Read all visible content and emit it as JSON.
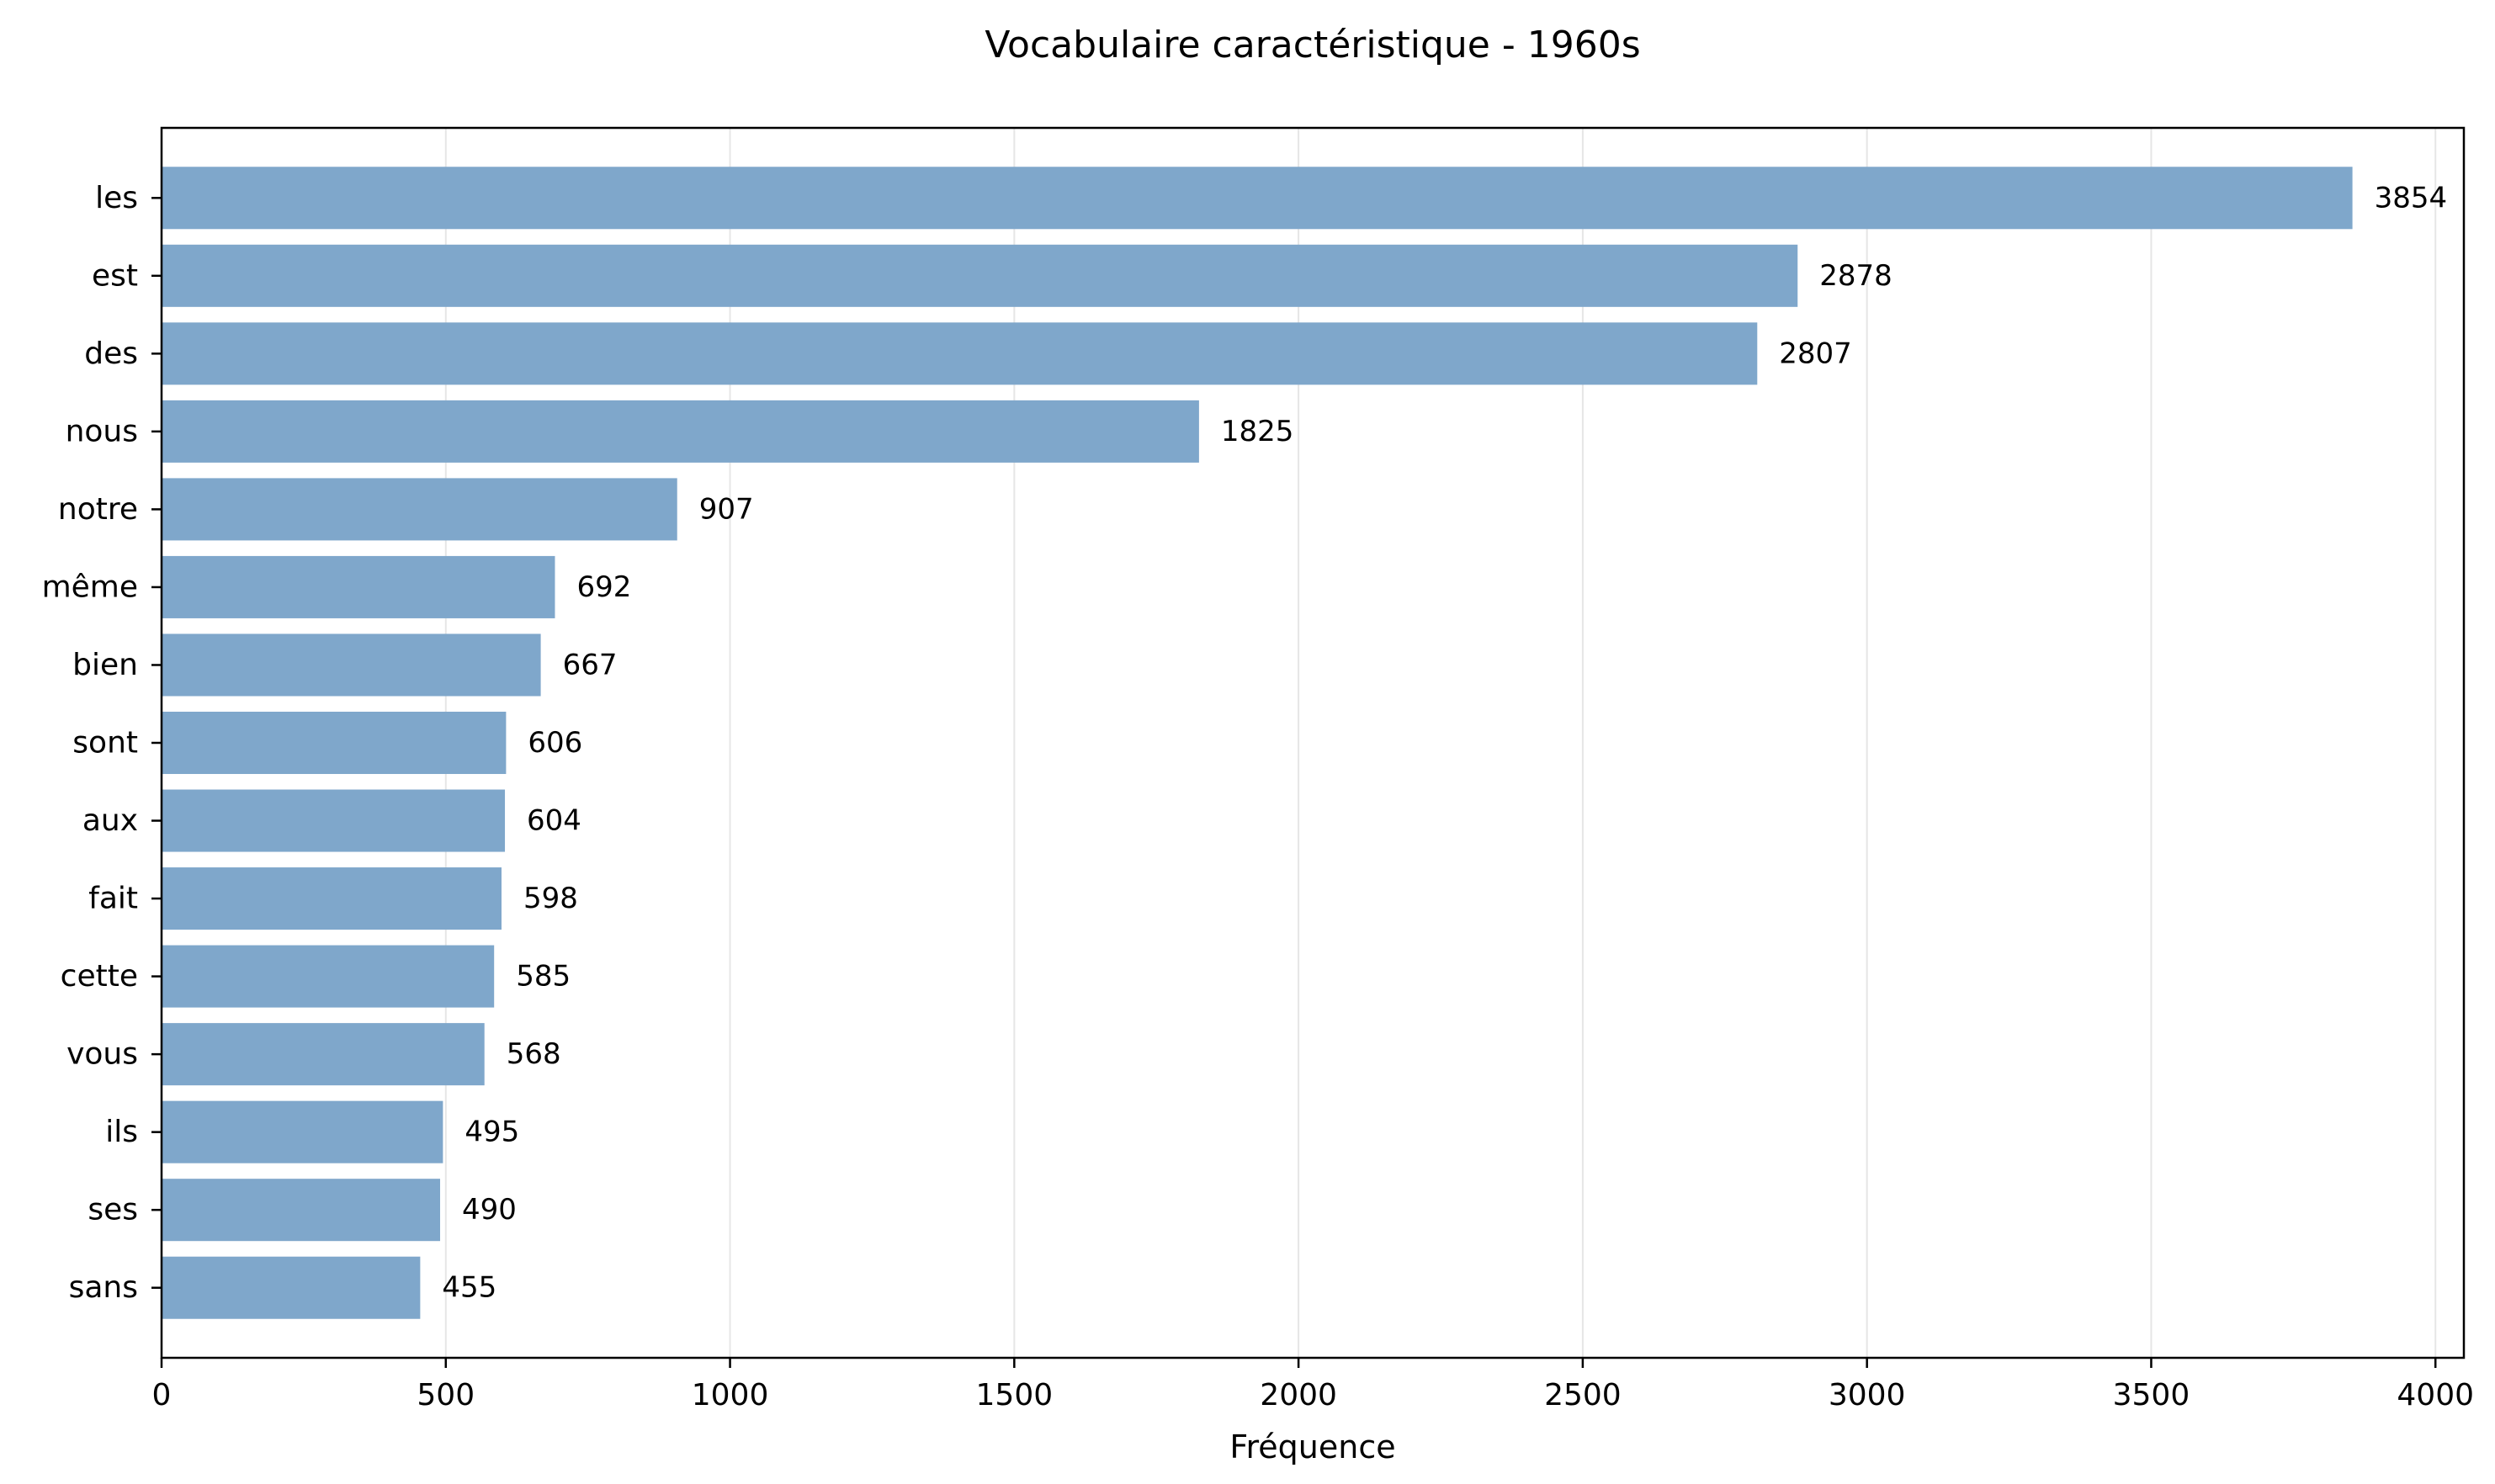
{
  "chart_data": {
    "type": "bar",
    "orientation": "horizontal",
    "title": "Vocabulaire caractéristique - 1960s",
    "xlabel": "Fréquence",
    "ylabel": "",
    "categories": [
      "les",
      "est",
      "des",
      "nous",
      "notre",
      "même",
      "bien",
      "sont",
      "aux",
      "fait",
      "cette",
      "vous",
      "ils",
      "ses",
      "sans"
    ],
    "values": [
      3854,
      2878,
      2807,
      1825,
      907,
      692,
      667,
      606,
      604,
      598,
      585,
      568,
      495,
      490,
      455
    ],
    "data_labels": [
      "3854",
      "2878",
      "2807",
      "1825",
      "907",
      "692",
      "667",
      "606",
      "604",
      "598",
      "585",
      "568",
      "495",
      "490",
      "455"
    ],
    "xlim": [
      0,
      4050
    ],
    "x_ticks": [
      0,
      500,
      1000,
      1500,
      2000,
      2500,
      3000,
      3500,
      4000
    ],
    "x_tick_labels": [
      "0",
      "500",
      "1000",
      "1500",
      "2000",
      "2500",
      "3000",
      "3500",
      "4000"
    ],
    "grid": "vertical",
    "legend": "none",
    "bar_color": "#7fa7cb"
  }
}
